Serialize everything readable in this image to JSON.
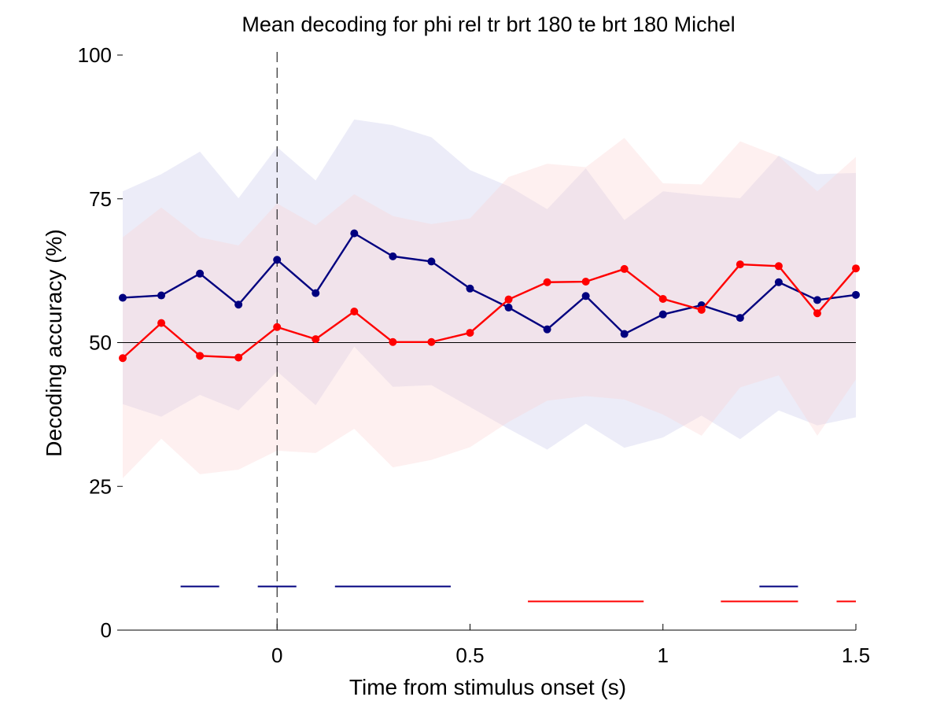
{
  "chart_data": {
    "type": "line",
    "title": "Mean decoding for phi rel tr brt 180 te brt 180  Michel",
    "xlabel": "Time from stimulus onset (s)",
    "ylabel": "Decoding accuracy (%)",
    "xlim": [
      -0.4,
      1.5
    ],
    "ylim": [
      0,
      100
    ],
    "xticks": [
      0,
      0.5,
      1,
      1.5
    ],
    "xtick_labels": [
      "0",
      "0.5",
      "1",
      "1.5"
    ],
    "yticks": [
      0,
      25,
      50,
      75,
      100
    ],
    "ytick_labels": [
      "0",
      "25",
      "50",
      "75",
      "100"
    ],
    "grid": false,
    "reference_lines": {
      "chance_y": 50,
      "onset_x": 0
    },
    "x": [
      -0.4,
      -0.3,
      -0.2,
      -0.1,
      0.0,
      0.1,
      0.2,
      0.3,
      0.4,
      0.5,
      0.6,
      0.7,
      0.8,
      0.9,
      1.0,
      1.1,
      1.2,
      1.3,
      1.4,
      1.5
    ],
    "series": [
      {
        "color": "#00007f",
        "band_color": "#c9c9ea",
        "values": [
          57.8,
          58.2,
          62.0,
          56.6,
          64.4,
          58.6,
          69.0,
          65.0,
          64.1,
          59.4,
          56.1,
          52.3,
          58.1,
          51.5,
          54.9,
          56.5,
          54.3,
          60.5,
          57.4,
          58.3
        ],
        "upper": [
          76.3,
          79.3,
          83.2,
          75.1,
          84.0,
          78.2,
          88.8,
          87.8,
          85.7,
          80.0,
          77.2,
          73.2,
          80.3,
          71.3,
          76.3,
          75.6,
          75.1,
          82.5,
          79.3,
          79.5
        ],
        "lower": [
          39.3,
          37.1,
          40.9,
          38.2,
          45.0,
          39.1,
          49.3,
          42.3,
          42.6,
          38.8,
          35.0,
          31.4,
          35.9,
          31.7,
          33.5,
          37.3,
          33.2,
          38.2,
          35.6,
          37.0
        ],
        "significant_spans": [
          [
            -0.25,
            -0.15
          ],
          [
            -0.05,
            0.05
          ],
          [
            0.15,
            0.45
          ],
          [
            1.25,
            1.35
          ]
        ]
      },
      {
        "color": "#ff0000",
        "band_color": "#fcd4d4",
        "values": [
          47.3,
          53.4,
          47.7,
          47.4,
          52.7,
          50.6,
          55.4,
          50.1,
          50.1,
          51.7,
          57.5,
          60.5,
          60.6,
          62.8,
          57.6,
          55.7,
          63.6,
          63.3,
          55.1,
          62.9
        ],
        "upper": [
          68.3,
          73.5,
          68.3,
          66.9,
          74.2,
          70.4,
          75.8,
          72.0,
          70.6,
          71.6,
          78.8,
          81.1,
          80.5,
          85.6,
          77.7,
          77.5,
          85.0,
          82.4,
          76.3,
          82.3
        ],
        "lower": [
          26.4,
          33.3,
          27.1,
          27.9,
          31.2,
          30.8,
          35.0,
          28.3,
          29.6,
          31.8,
          36.2,
          39.9,
          40.7,
          40.1,
          37.5,
          33.8,
          42.2,
          44.3,
          33.8,
          43.6
        ],
        "significant_spans": [
          [
            0.65,
            0.95
          ],
          [
            1.15,
            1.35
          ],
          [
            1.45,
            1.5
          ]
        ]
      }
    ]
  }
}
